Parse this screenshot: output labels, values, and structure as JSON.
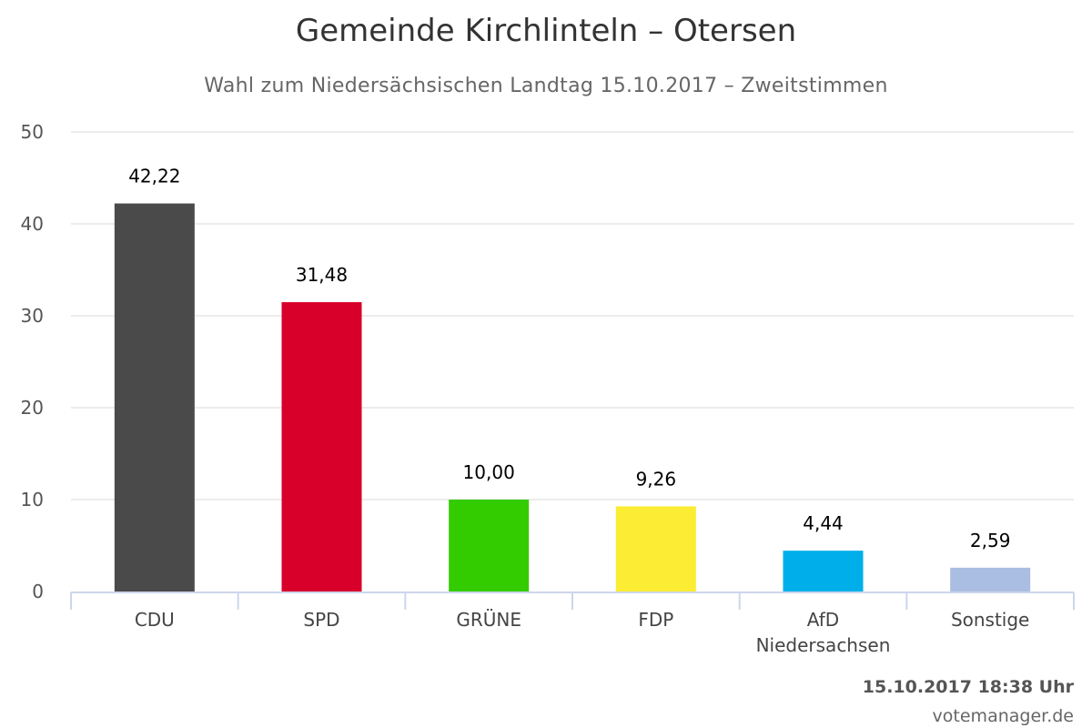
{
  "header": {
    "title": "Gemeinde Kirchlinteln – Otersen",
    "subtitle": "Wahl zum Niedersächsischen Landtag 15.10.2017 – Zweitstimmen"
  },
  "footer": {
    "timestamp": "15.10.2017 18:38 Uhr",
    "credits": "votemanager.de"
  },
  "chart_data": {
    "type": "bar",
    "title": "Gemeinde Kirchlinteln – Otersen",
    "subtitle": "Wahl zum Niedersächsischen Landtag 15.10.2017 – Zweitstimmen",
    "categories": [
      [
        "CDU"
      ],
      [
        "SPD"
      ],
      [
        "GRÜNE"
      ],
      [
        "FDP"
      ],
      [
        "AfD",
        "Niedersachsen"
      ],
      [
        "Sonstige"
      ]
    ],
    "values": [
      42.22,
      31.48,
      10.0,
      9.26,
      4.44,
      2.59
    ],
    "value_labels": [
      "42,22",
      "31,48",
      "10,00",
      "9,26",
      "4,44",
      "2,59"
    ],
    "colors": [
      "#4a4a4a",
      "#d8002b",
      "#33cc00",
      "#fcec33",
      "#00aeea",
      "#aabde2"
    ],
    "ylim": [
      0,
      50
    ],
    "yticks": [
      0,
      10,
      20,
      30,
      40,
      50
    ],
    "xlabel": "",
    "ylabel": "",
    "grid": true,
    "legend": "none"
  }
}
